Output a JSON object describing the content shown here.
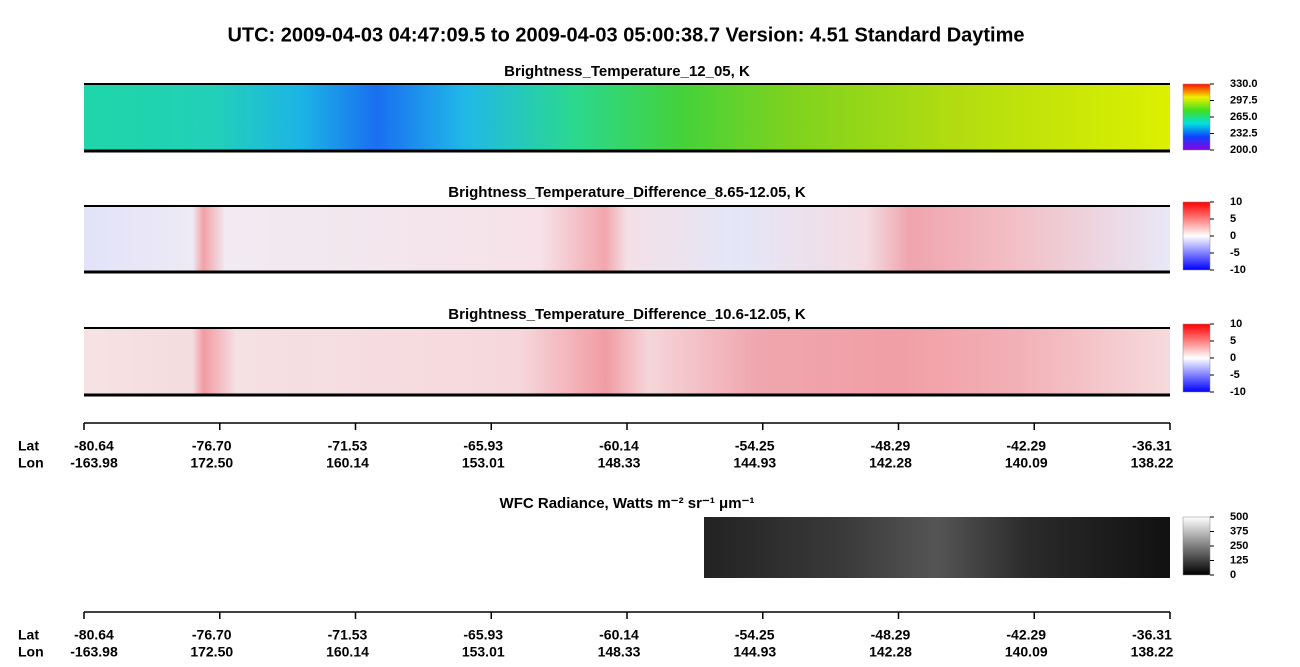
{
  "title": "UTC:  2009-04-03   04:47:09.5  to  2009-04-03   05:00:38.7    Version: 4.51  Standard Daytime",
  "chart_data": [
    {
      "type": "heatmap",
      "title": "Brightness_Temperature_12_05, K",
      "colorbar_lim": [
        200,
        330
      ],
      "colorbar_ticks": [
        {
          "value": 330,
          "label": "330.0"
        },
        {
          "value": 297.5,
          "label": "297.5"
        },
        {
          "value": 265,
          "label": "265.0"
        },
        {
          "value": 232.5,
          "label": "232.5"
        },
        {
          "value": 200,
          "label": "200.0"
        }
      ]
    },
    {
      "type": "heatmap",
      "title": "Brightness_Temperature_Difference_8.65-12.05, K",
      "colorbar_lim": [
        -10,
        10
      ],
      "colorbar_ticks": [
        10,
        5,
        0,
        -5,
        -10
      ]
    },
    {
      "type": "heatmap",
      "title": "Brightness_Temperature_Difference_10.6-12.05, K",
      "colorbar_lim": [
        -10,
        10
      ],
      "colorbar_ticks": [
        10,
        5,
        0,
        -5,
        -10
      ]
    },
    {
      "type": "heatmap",
      "title": "WFC Radiance, Watts m⁻² sr⁻¹ μm⁻¹",
      "colorbar_lim": [
        0,
        500
      ],
      "colorbar_ticks": [
        500,
        375,
        250,
        125,
        0
      ]
    }
  ],
  "track_axis": {
    "lat_label": "Lat",
    "lon_label": "Lon",
    "lat": [
      -80.64,
      {
        "value": -76.7,
        "label": "-76.70"
      },
      -71.53,
      -65.93,
      -60.14,
      -54.25,
      -48.29,
      -42.29,
      -36.31
    ],
    "lon": [
      -163.98,
      {
        "value": 172.5,
        "label": "172.50"
      },
      160.14,
      153.01,
      148.33,
      144.93,
      142.28,
      140.09,
      138.22
    ]
  }
}
